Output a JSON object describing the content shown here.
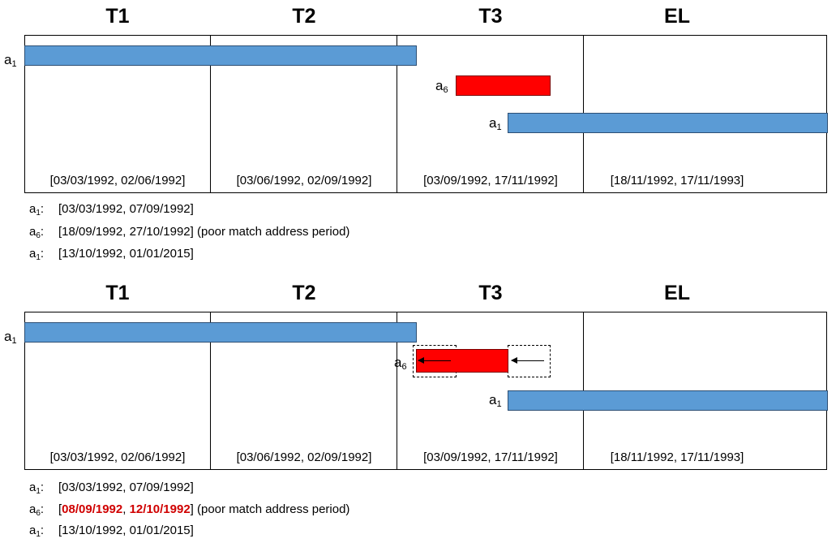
{
  "headers": [
    "T1",
    "T2",
    "T3",
    "EL"
  ],
  "ranges": [
    "[03/03/1992, 02/06/1992]",
    "[03/06/1992, 02/09/1992]",
    "[03/09/1992, 17/11/1992]",
    "[18/11/1992, 17/11/1993]"
  ],
  "bar_labels": {
    "first": {
      "base": "a",
      "sub": "1"
    },
    "middle": {
      "base": "a",
      "sub": "6"
    },
    "last": {
      "base": "a",
      "sub": "1"
    }
  },
  "legend_top": [
    {
      "base": "a",
      "sub": "1",
      "sep": ":",
      "text": "[03/03/1992, 07/09/1992]"
    },
    {
      "base": "a",
      "sub": "6",
      "sep": ":",
      "text": "[18/09/1992, 27/10/1992] (poor match address period)"
    },
    {
      "base": "a",
      "sub": "1",
      "sep": ":",
      "text": "[13/10/1992, 01/01/2015]"
    }
  ],
  "legend_bottom": [
    {
      "base": "a",
      "sub": "1",
      "sep": ":",
      "text": "[03/03/1992, 07/09/1992]"
    },
    {
      "base": "a",
      "sub": "6",
      "sep": ":",
      "open": "[",
      "hl1": "08/09/1992",
      "comma": ", ",
      "hl2": "12/10/1992",
      "close": "] (poor match address period)"
    },
    {
      "base": "a",
      "sub": "1",
      "sep": ":",
      "text": "[13/10/1992, 01/01/2015]"
    }
  ],
  "colors": {
    "address_bar": "#5b9bd5",
    "poor_match_bar": "#ff0000",
    "highlight_text": "#d00000"
  }
}
